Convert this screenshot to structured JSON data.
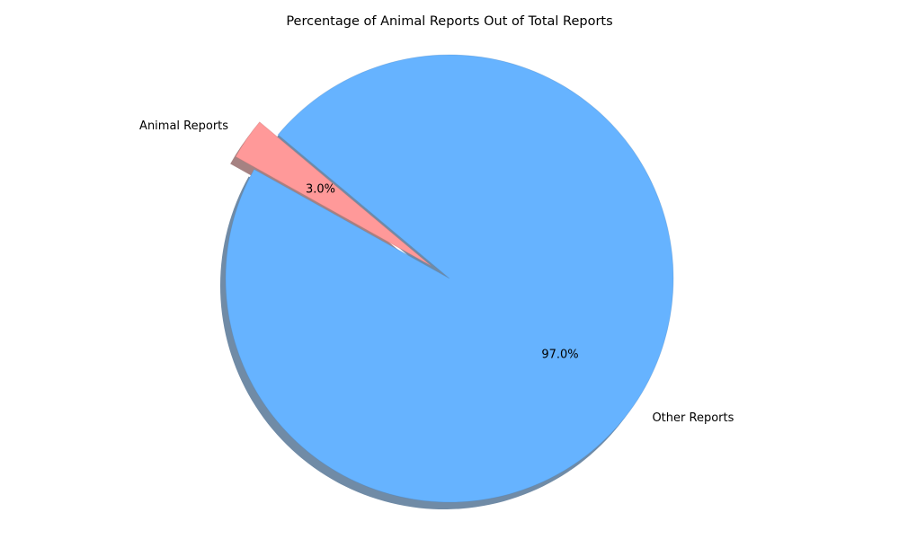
{
  "chart_data": {
    "type": "pie",
    "title": "Percentage of Animal Reports Out of Total Reports",
    "slices": [
      {
        "label": "Animal Reports",
        "value": 3.0,
        "pct_label": "3.0%",
        "color": "#ff9999",
        "exploded": true
      },
      {
        "label": "Other Reports",
        "value": 97.0,
        "pct_label": "97.0%",
        "color": "#66b3ff",
        "exploded": false
      }
    ],
    "start_angle_deg": 140,
    "direction": "counterclockwise",
    "shadow": true
  }
}
